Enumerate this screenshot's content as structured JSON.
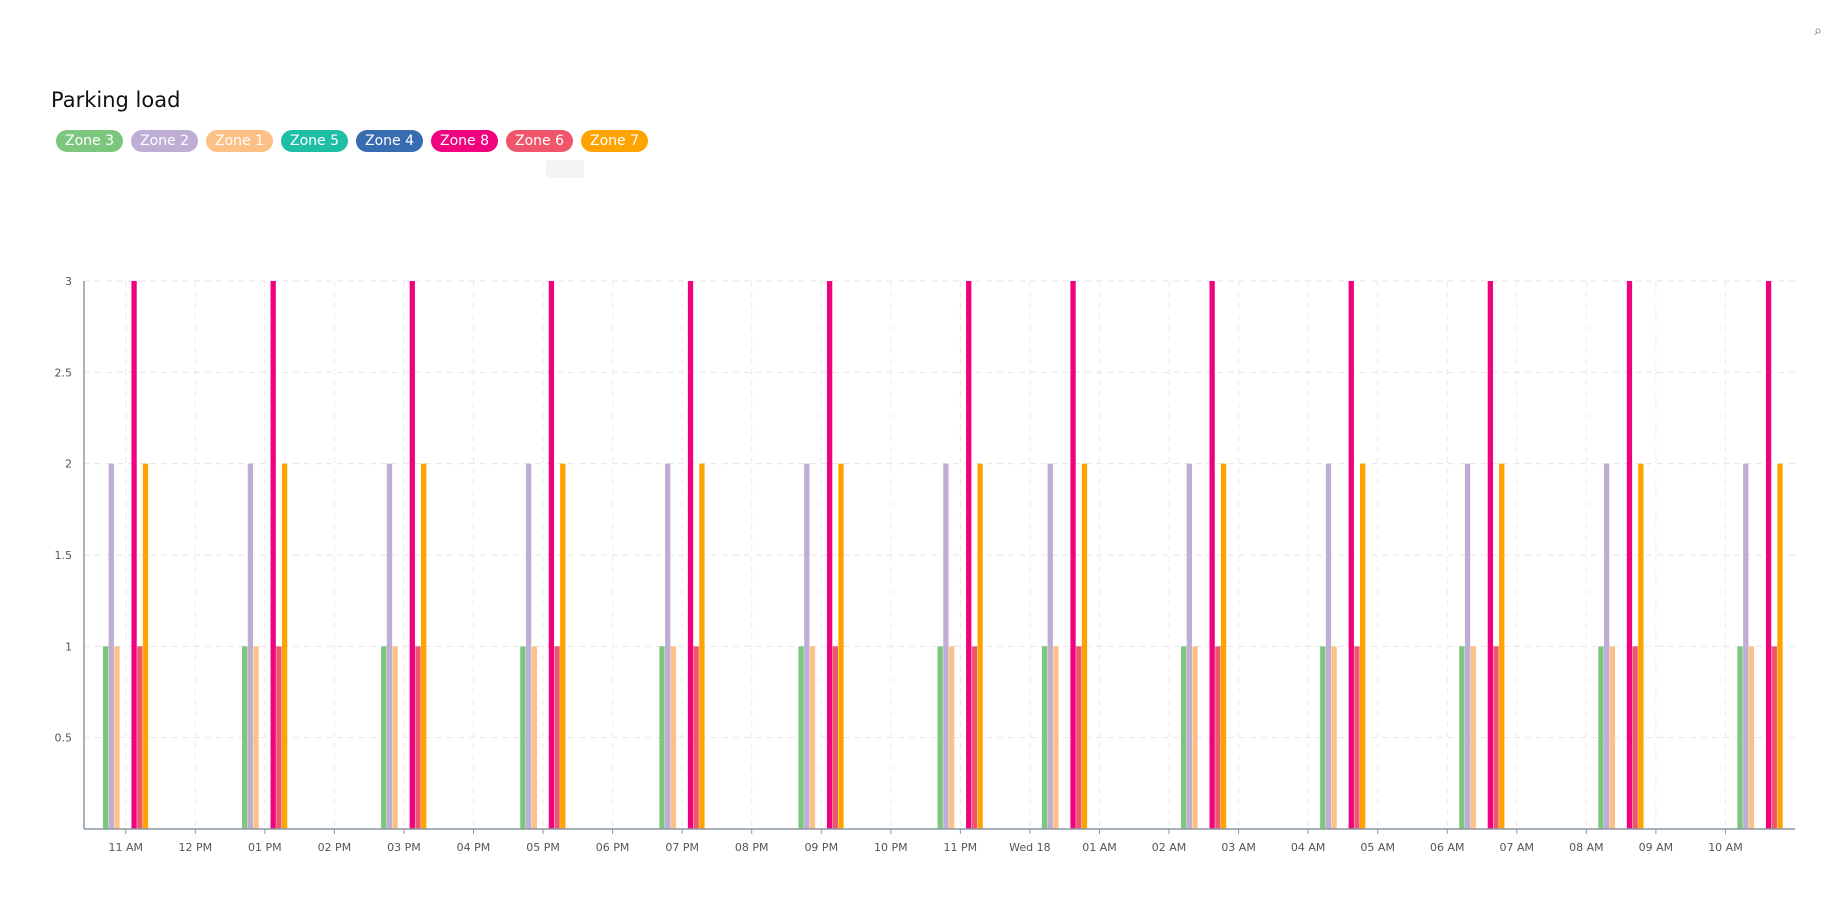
{
  "toolbar": {
    "collapse_icon": "collapse-icon"
  },
  "chart_data": {
    "type": "bar",
    "title": "Parking load",
    "xlabel": "",
    "ylabel": "",
    "ylim": [
      0,
      3
    ],
    "yticks": [
      "0.5",
      "1",
      "1.5",
      "2",
      "2.5",
      "3"
    ],
    "grid": true,
    "legend_position": "top-left",
    "x_tick_labels": [
      "11 AM",
      "12 PM",
      "01 PM",
      "02 PM",
      "03 PM",
      "04 PM",
      "05 PM",
      "06 PM",
      "07 PM",
      "08 PM",
      "09 PM",
      "10 PM",
      "11 PM",
      "Wed 18",
      "01 AM",
      "02 AM",
      "03 AM",
      "04 AM",
      "05 AM",
      "06 AM",
      "07 AM",
      "08 AM",
      "09 AM",
      "10 AM"
    ],
    "x_tick_hours": [
      11,
      12,
      13,
      14,
      15,
      16,
      17,
      18,
      19,
      20,
      21,
      22,
      23,
      24,
      25,
      26,
      27,
      28,
      29,
      30,
      31,
      32,
      33,
      34
    ],
    "x_range_hours": [
      10.4,
      35.0
    ],
    "series_order": [
      "Zone 3",
      "Zone 2",
      "Zone 1",
      "Zone 5",
      "Zone 4",
      "Zone 8",
      "Zone 6",
      "Zone 7"
    ],
    "series": [
      {
        "name": "Zone 3",
        "color": "#7dc67e"
      },
      {
        "name": "Zone 2",
        "color": "#beaed4"
      },
      {
        "name": "Zone 1",
        "color": "#fdc086"
      },
      {
        "name": "Zone 5",
        "color": "#1fbfa6"
      },
      {
        "name": "Zone 4",
        "color": "#386cb0"
      },
      {
        "name": "Zone 8",
        "color": "#f0027f"
      },
      {
        "name": "Zone 6",
        "color": "#f0566b"
      },
      {
        "name": "Zone 7",
        "color": "#ffa300"
      }
    ],
    "groups": [
      {
        "hour": 11.0,
        "values": {
          "Zone 3": 1,
          "Zone 2": 2,
          "Zone 1": 1,
          "Zone 5": 0,
          "Zone 4": 0,
          "Zone 8": 3,
          "Zone 6": 1,
          "Zone 7": 2
        }
      },
      {
        "hour": 13.0,
        "values": {
          "Zone 3": 1,
          "Zone 2": 2,
          "Zone 1": 1,
          "Zone 5": 0,
          "Zone 4": 0,
          "Zone 8": 3,
          "Zone 6": 1,
          "Zone 7": 2
        }
      },
      {
        "hour": 15.0,
        "values": {
          "Zone 3": 1,
          "Zone 2": 2,
          "Zone 1": 1,
          "Zone 5": 0,
          "Zone 4": 0,
          "Zone 8": 3,
          "Zone 6": 1,
          "Zone 7": 2
        }
      },
      {
        "hour": 17.0,
        "values": {
          "Zone 3": 1,
          "Zone 2": 2,
          "Zone 1": 1,
          "Zone 5": 0,
          "Zone 4": 0,
          "Zone 8": 3,
          "Zone 6": 1,
          "Zone 7": 2
        }
      },
      {
        "hour": 19.0,
        "values": {
          "Zone 3": 1,
          "Zone 2": 2,
          "Zone 1": 1,
          "Zone 5": 0,
          "Zone 4": 0,
          "Zone 8": 3,
          "Zone 6": 1,
          "Zone 7": 2
        }
      },
      {
        "hour": 21.0,
        "values": {
          "Zone 3": 1,
          "Zone 2": 2,
          "Zone 1": 1,
          "Zone 5": 0,
          "Zone 4": 0,
          "Zone 8": 3,
          "Zone 6": 1,
          "Zone 7": 2
        }
      },
      {
        "hour": 23.0,
        "values": {
          "Zone 3": 1,
          "Zone 2": 2,
          "Zone 1": 1,
          "Zone 5": 0,
          "Zone 4": 0,
          "Zone 8": 3,
          "Zone 6": 1,
          "Zone 7": 2
        }
      },
      {
        "hour": 24.5,
        "values": {
          "Zone 3": 1,
          "Zone 2": 2,
          "Zone 1": 1,
          "Zone 5": 0,
          "Zone 4": 0,
          "Zone 8": 3,
          "Zone 6": 1,
          "Zone 7": 2
        }
      },
      {
        "hour": 26.5,
        "values": {
          "Zone 3": 1,
          "Zone 2": 2,
          "Zone 1": 1,
          "Zone 5": 0,
          "Zone 4": 0,
          "Zone 8": 3,
          "Zone 6": 1,
          "Zone 7": 2
        }
      },
      {
        "hour": 28.5,
        "values": {
          "Zone 3": 1,
          "Zone 2": 2,
          "Zone 1": 1,
          "Zone 5": 0,
          "Zone 4": 0,
          "Zone 8": 3,
          "Zone 6": 1,
          "Zone 7": 2
        }
      },
      {
        "hour": 30.5,
        "values": {
          "Zone 3": 1,
          "Zone 2": 2,
          "Zone 1": 1,
          "Zone 5": 0,
          "Zone 4": 0,
          "Zone 8": 3,
          "Zone 6": 1,
          "Zone 7": 2
        }
      },
      {
        "hour": 32.5,
        "values": {
          "Zone 3": 1,
          "Zone 2": 2,
          "Zone 1": 1,
          "Zone 5": 0,
          "Zone 4": 0,
          "Zone 8": 3,
          "Zone 6": 1,
          "Zone 7": 2
        }
      },
      {
        "hour": 34.5,
        "values": {
          "Zone 3": 1,
          "Zone 2": 2,
          "Zone 1": 1,
          "Zone 5": 0,
          "Zone 4": 0,
          "Zone 8": 3,
          "Zone 6": 1,
          "Zone 7": 2
        }
      }
    ]
  }
}
